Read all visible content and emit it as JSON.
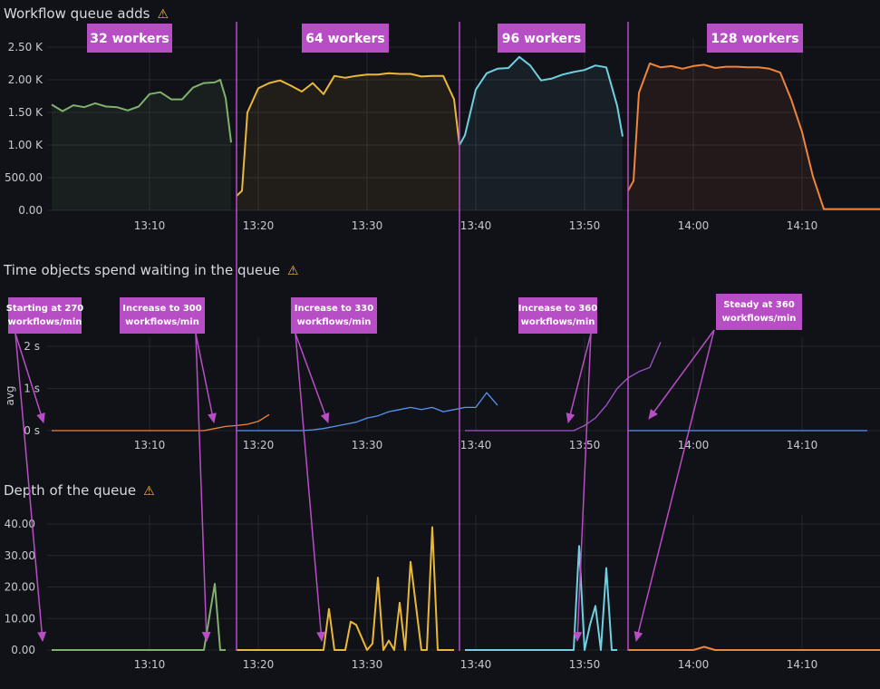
{
  "colors": {
    "background": "#111217",
    "grid": "#25272d",
    "axis_text": "#c7c8d1",
    "annotation": "#b84ec6",
    "annotation_text": "#ffffff",
    "green": "#7eb26d",
    "yellow": "#eab839",
    "blue": "#6ed0e0",
    "orange": "#ef843c",
    "warning": "#f5b73b"
  },
  "panels": {
    "p1": {
      "title": "Workflow queue adds"
    },
    "p2": {
      "title": "Time objects spend waiting in the queue",
      "y_axis_label": "avg"
    },
    "p3": {
      "title": "Depth of the queue"
    }
  },
  "worker_labels": [
    "32 workers",
    "64 workers",
    "96 workers",
    "128 workers"
  ],
  "callouts": [
    {
      "line1": "Starting at 270",
      "line2": "workflows/min"
    },
    {
      "line1": "Increase to 300",
      "line2": "workflows/min"
    },
    {
      "line1": "Increase to 330",
      "line2": "workflows/min"
    },
    {
      "line1": "Increase to 360",
      "line2": "workflows/min"
    },
    {
      "line1": "Steady at 360",
      "line2": "workflows/min"
    }
  ],
  "chart_data": [
    {
      "type": "line",
      "title": "Workflow queue adds",
      "x_ticks": [
        "13:10",
        "13:20",
        "13:30",
        "13:40",
        "13:50",
        "14:00",
        "14:10"
      ],
      "y_ticks": [
        "0.00",
        "500.00",
        "1.00 K",
        "1.50 K",
        "2.00 K",
        "2.50 K"
      ],
      "ylim": [
        0,
        2600
      ],
      "xlim": [
        "13:01",
        "14:18"
      ],
      "annotations": [
        "32 workers",
        "64 workers",
        "96 workers",
        "128 workers"
      ],
      "series": [
        {
          "color": "#7eb26d",
          "x": [
            "13:01",
            "13:02",
            "13:03",
            "13:04",
            "13:05",
            "13:06",
            "13:07",
            "13:08",
            "13:09",
            "13:10",
            "13:11",
            "13:12",
            "13:13",
            "13:14",
            "13:15",
            "13:16",
            "13:16.5",
            "13:17",
            "13:17.5"
          ],
          "values": [
            1620,
            1520,
            1610,
            1580,
            1640,
            1590,
            1580,
            1530,
            1590,
            1780,
            1810,
            1700,
            1700,
            1880,
            1950,
            1960,
            2000,
            1720,
            1040
          ]
        },
        {
          "color": "#eab839",
          "x": [
            "13:18",
            "13:18.5",
            "13:19",
            "13:20",
            "13:21",
            "13:22",
            "13:23",
            "13:24",
            "13:25",
            "13:26",
            "13:27",
            "13:28",
            "13:29",
            "13:30",
            "13:31",
            "13:32",
            "13:33",
            "13:34",
            "13:35",
            "13:36",
            "13:37",
            "13:38",
            "13:38.5"
          ],
          "values": [
            220,
            300,
            1500,
            1870,
            1950,
            1990,
            1910,
            1820,
            1950,
            1780,
            2060,
            2030,
            2060,
            2080,
            2080,
            2100,
            2090,
            2090,
            2050,
            2060,
            2060,
            1700,
            1000
          ]
        },
        {
          "color": "#6ed0e0",
          "x": [
            "13:38.5",
            "13:39",
            "13:40",
            "13:41",
            "13:42",
            "13:43",
            "13:44",
            "13:45",
            "13:46",
            "13:47",
            "13:48",
            "13:49",
            "13:50",
            "13:51",
            "13:52",
            "13:53",
            "13:53.5"
          ],
          "values": [
            1000,
            1150,
            1850,
            2100,
            2170,
            2180,
            2350,
            2220,
            1990,
            2020,
            2080,
            2120,
            2150,
            2220,
            2190,
            1600,
            1130
          ]
        },
        {
          "color": "#ef843c",
          "x": [
            "13:54",
            "13:54.5",
            "13:55",
            "13:56",
            "13:57",
            "13:58",
            "13:59",
            "14:00",
            "14:01",
            "14:02",
            "14:03",
            "14:04",
            "14:05",
            "14:06",
            "14:07",
            "14:08",
            "14:09",
            "14:10",
            "14:11",
            "14:12",
            "14:18"
          ],
          "values": [
            300,
            450,
            1800,
            2250,
            2190,
            2210,
            2170,
            2210,
            2230,
            2180,
            2200,
            2200,
            2190,
            2190,
            2170,
            2110,
            1700,
            1200,
            520,
            20,
            20
          ]
        }
      ]
    },
    {
      "type": "line",
      "title": "Time objects spend waiting in the queue",
      "ylabel": "avg",
      "x_ticks": [
        "13:10",
        "13:20",
        "13:30",
        "13:40",
        "13:50",
        "14:00",
        "14:10"
      ],
      "y_ticks": [
        "0 s",
        "1 s",
        "2 s"
      ],
      "ylim": [
        0,
        2.5
      ],
      "annotations": [
        "Starting at 270 workflows/min",
        "Increase to 300 workflows/min",
        "Increase to 330 workflows/min",
        "Increase to 360 workflows/min",
        "Steady at 360 workflows/min"
      ],
      "series": [
        {
          "color": "#ef843c",
          "x": [
            "13:01",
            "13:15",
            "13:16",
            "13:17",
            "13:18",
            "13:19",
            "13:20",
            "13:21"
          ],
          "values": [
            0,
            0,
            0.05,
            0.1,
            0.12,
            0.15,
            0.22,
            0.38
          ]
        },
        {
          "color": "#5794f2",
          "x": [
            "13:18",
            "13:24",
            "13:25",
            "13:26",
            "13:27",
            "13:28",
            "13:29",
            "13:30",
            "13:31",
            "13:32",
            "13:33",
            "13:34",
            "13:35",
            "13:36",
            "13:37",
            "13:38",
            "13:39",
            "13:40",
            "13:41",
            "13:42"
          ],
          "values": [
            0,
            0,
            0.02,
            0.05,
            0.1,
            0.15,
            0.2,
            0.3,
            0.35,
            0.45,
            0.5,
            0.55,
            0.5,
            0.55,
            0.45,
            0.5,
            0.55,
            0.55,
            0.9,
            0.6
          ]
        },
        {
          "color": "#a352cc",
          "x": [
            "13:39",
            "13:49",
            "13:50",
            "13:51",
            "13:52",
            "13:53",
            "13:54",
            "13:55",
            "13:56",
            "13:57"
          ],
          "values": [
            0,
            0,
            0.12,
            0.3,
            0.6,
            1.0,
            1.25,
            1.4,
            1.5,
            2.1
          ]
        },
        {
          "color": "#5794f2",
          "x": [
            "13:54",
            "14:16"
          ],
          "values": [
            0,
            0
          ]
        }
      ]
    },
    {
      "type": "line",
      "title": "Depth of the queue",
      "x_ticks": [
        "13:10",
        "13:20",
        "13:30",
        "13:40",
        "13:50",
        "14:00",
        "14:10"
      ],
      "y_ticks": [
        "0.00",
        "10.00",
        "20.00",
        "30.00",
        "40.00"
      ],
      "ylim": [
        0,
        42
      ],
      "series": [
        {
          "color": "#7eb26d",
          "x": [
            "13:01",
            "13:15",
            "13:16",
            "13:16.5",
            "13:17"
          ],
          "values": [
            0,
            0,
            21,
            0,
            0
          ]
        },
        {
          "color": "#eab839",
          "x": [
            "13:18",
            "13:26",
            "13:26.5",
            "13:27",
            "13:28",
            "13:28.5",
            "13:29",
            "13:30",
            "13:30.5",
            "13:31",
            "13:31.5",
            "13:32",
            "13:32.5",
            "13:33",
            "13:33.5",
            "13:34",
            "13:35",
            "13:35.5",
            "13:36",
            "13:36.5",
            "13:37",
            "13:37.5",
            "13:38"
          ],
          "values": [
            0,
            0,
            13,
            0,
            0,
            9,
            8,
            0,
            2,
            23,
            0,
            3,
            0,
            15,
            0,
            28,
            0,
            0,
            39,
            0,
            0,
            0,
            0
          ]
        },
        {
          "color": "#6ed0e0",
          "x": [
            "13:39",
            "13:49",
            "13:49.5",
            "13:50",
            "13:50.5",
            "13:51",
            "13:51.5",
            "13:52",
            "13:52.5",
            "13:53"
          ],
          "values": [
            0,
            0,
            33,
            0,
            8,
            14,
            0,
            26,
            0,
            0
          ]
        },
        {
          "color": "#ef843c",
          "x": [
            "13:54",
            "14:00",
            "14:01",
            "14:02",
            "14:18"
          ],
          "values": [
            0,
            0,
            1,
            0,
            0
          ]
        }
      ]
    }
  ]
}
